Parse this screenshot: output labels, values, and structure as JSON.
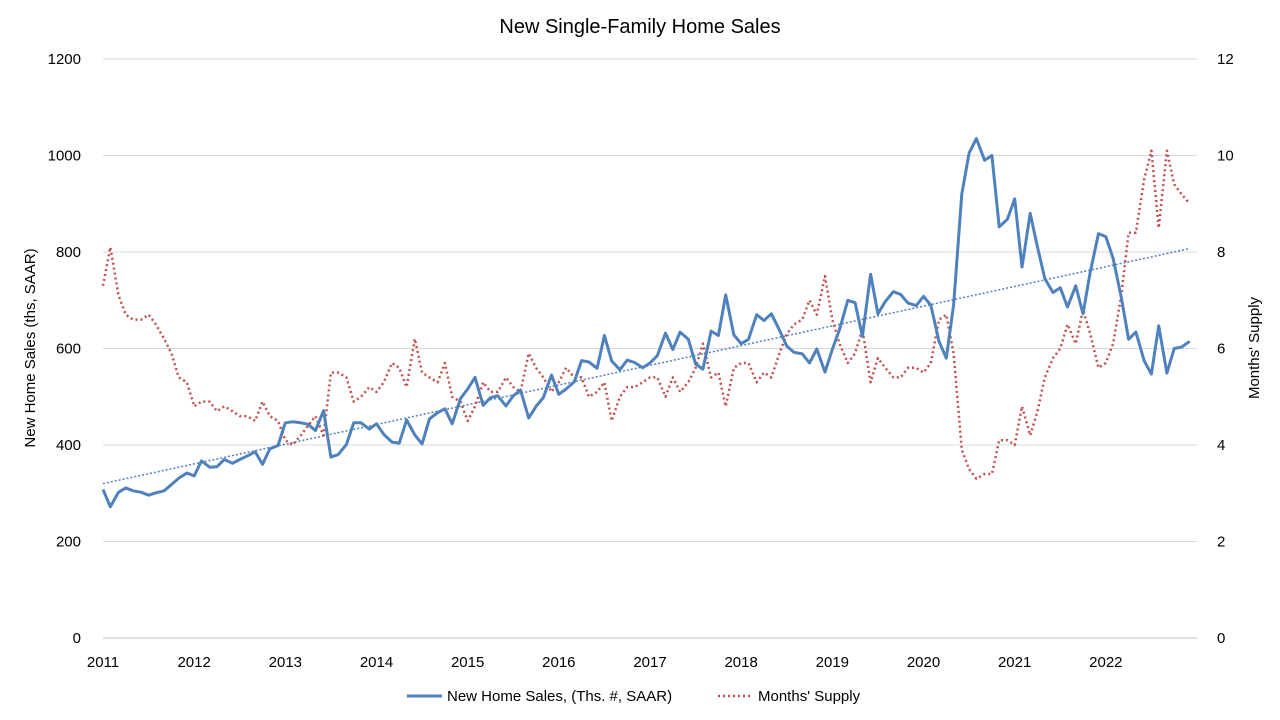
{
  "chart_data": {
    "type": "line",
    "title": "New Single-Family Home Sales",
    "ylabel": "New Home Sales (ths, SAAR)",
    "y2label": "Months' Supply",
    "ylim": [
      0,
      1200
    ],
    "y2lim": [
      0,
      12
    ],
    "yticks": [
      0,
      200,
      400,
      600,
      800,
      1000,
      1200
    ],
    "y2ticks": [
      0,
      2,
      4,
      6,
      8,
      10,
      12
    ],
    "xlim": [
      2011,
      2023
    ],
    "xticks": [
      "2011",
      "2012",
      "2013",
      "2014",
      "2015",
      "2016",
      "2017",
      "2018",
      "2019",
      "2020",
      "2021",
      "2022"
    ],
    "grid": true,
    "legend_position": "bottom",
    "series": [
      {
        "name": "New Home Sales, (Ths. #, SAAR)",
        "axis": "left",
        "color": "#4f81bd",
        "style": "solid",
        "x": [
          2011.0,
          2011.08,
          2011.17,
          2011.25,
          2011.33,
          2011.42,
          2011.5,
          2011.58,
          2011.67,
          2011.75,
          2011.83,
          2011.92,
          2012.0,
          2012.08,
          2012.17,
          2012.25,
          2012.33,
          2012.42,
          2012.5,
          2012.58,
          2012.67,
          2012.75,
          2012.83,
          2012.92,
          2013.0,
          2013.08,
          2013.17,
          2013.25,
          2013.33,
          2013.42,
          2013.5,
          2013.58,
          2013.67,
          2013.75,
          2013.83,
          2013.92,
          2014.0,
          2014.08,
          2014.17,
          2014.25,
          2014.33,
          2014.42,
          2014.5,
          2014.58,
          2014.67,
          2014.75,
          2014.83,
          2014.92,
          2015.0,
          2015.08,
          2015.17,
          2015.25,
          2015.33,
          2015.42,
          2015.5,
          2015.58,
          2015.67,
          2015.75,
          2015.83,
          2015.92,
          2016.0,
          2016.08,
          2016.17,
          2016.25,
          2016.33,
          2016.42,
          2016.5,
          2016.58,
          2016.67,
          2016.75,
          2016.83,
          2016.92,
          2017.0,
          2017.08,
          2017.17,
          2017.25,
          2017.33,
          2017.42,
          2017.5,
          2017.58,
          2017.67,
          2017.75,
          2017.83,
          2017.92,
          2018.0,
          2018.08,
          2018.17,
          2018.25,
          2018.33,
          2018.42,
          2018.5,
          2018.58,
          2018.67,
          2018.75,
          2018.83,
          2018.92,
          2019.0,
          2019.08,
          2019.17,
          2019.25,
          2019.33,
          2019.42,
          2019.5,
          2019.58,
          2019.67,
          2019.75,
          2019.83,
          2019.92,
          2020.0,
          2020.08,
          2020.17,
          2020.25,
          2020.33,
          2020.42,
          2020.5,
          2020.58,
          2020.67,
          2020.75,
          2020.83,
          2020.92,
          2021.0,
          2021.08,
          2021.17,
          2021.25,
          2021.33,
          2021.42,
          2021.5,
          2021.58,
          2021.67,
          2021.75,
          2021.83,
          2021.92,
          2022.0,
          2022.08,
          2022.17,
          2022.25,
          2022.33,
          2022.42,
          2022.5,
          2022.58,
          2022.67,
          2022.75,
          2022.83,
          2022.92
        ],
        "values": [
          308,
          272,
          302,
          311,
          305,
          302,
          296,
          301,
          305,
          318,
          331,
          342,
          336,
          367,
          354,
          355,
          370,
          362,
          370,
          377,
          386,
          360,
          392,
          399,
          446,
          448,
          446,
          443,
          430,
          471,
          375,
          380,
          401,
          446,
          446,
          433,
          444,
          422,
          406,
          404,
          452,
          421,
          402,
          454,
          467,
          475,
          444,
          496,
          516,
          540,
          482,
          498,
          502,
          481,
          502,
          514,
          456,
          480,
          498,
          545,
          505,
          516,
          531,
          575,
          572,
          559,
          627,
          574,
          556,
          576,
          571,
          560,
          570,
          585,
          632,
          598,
          634,
          619,
          568,
          557,
          636,
          627,
          711,
          628,
          610,
          619,
          670,
          658,
          672,
          638,
          605,
          592,
          589,
          570,
          599,
          551,
          598,
          640,
          700,
          695,
          625,
          754,
          672,
          697,
          718,
          712,
          694,
          689,
          708,
          690,
          615,
          580,
          690,
          920,
          1005,
          1035,
          990,
          1000,
          852,
          868,
          910,
          769,
          880,
          810,
          745,
          716,
          726,
          686,
          730,
          672,
          759,
          838,
          832,
          787,
          706,
          619,
          634,
          575,
          547,
          647,
          549,
          600,
          603,
          615
        ]
      },
      {
        "name": "Months' Supply",
        "axis": "right",
        "color": "#c0504d",
        "style": "dotted",
        "x": [
          2011.0,
          2011.08,
          2011.17,
          2011.25,
          2011.33,
          2011.42,
          2011.5,
          2011.58,
          2011.67,
          2011.75,
          2011.83,
          2011.92,
          2012.0,
          2012.08,
          2012.17,
          2012.25,
          2012.33,
          2012.42,
          2012.5,
          2012.58,
          2012.67,
          2012.75,
          2012.83,
          2012.92,
          2013.0,
          2013.08,
          2013.17,
          2013.25,
          2013.33,
          2013.42,
          2013.5,
          2013.58,
          2013.67,
          2013.75,
          2013.83,
          2013.92,
          2014.0,
          2014.08,
          2014.17,
          2014.25,
          2014.33,
          2014.42,
          2014.5,
          2014.58,
          2014.67,
          2014.75,
          2014.83,
          2014.92,
          2015.0,
          2015.08,
          2015.17,
          2015.25,
          2015.33,
          2015.42,
          2015.5,
          2015.58,
          2015.67,
          2015.75,
          2015.83,
          2015.92,
          2016.0,
          2016.08,
          2016.17,
          2016.25,
          2016.33,
          2016.42,
          2016.5,
          2016.58,
          2016.67,
          2016.75,
          2016.83,
          2016.92,
          2017.0,
          2017.08,
          2017.17,
          2017.25,
          2017.33,
          2017.42,
          2017.5,
          2017.58,
          2017.67,
          2017.75,
          2017.83,
          2017.92,
          2018.0,
          2018.08,
          2018.17,
          2018.25,
          2018.33,
          2018.42,
          2018.5,
          2018.58,
          2018.67,
          2018.75,
          2018.83,
          2018.92,
          2019.0,
          2019.08,
          2019.17,
          2019.25,
          2019.33,
          2019.42,
          2019.5,
          2019.58,
          2019.67,
          2019.75,
          2019.83,
          2019.92,
          2020.0,
          2020.08,
          2020.17,
          2020.25,
          2020.33,
          2020.42,
          2020.5,
          2020.58,
          2020.67,
          2020.75,
          2020.83,
          2020.92,
          2021.0,
          2021.08,
          2021.17,
          2021.25,
          2021.33,
          2021.42,
          2021.5,
          2021.58,
          2021.67,
          2021.75,
          2021.83,
          2021.92,
          2022.0,
          2022.08,
          2022.17,
          2022.25,
          2022.33,
          2022.42,
          2022.5,
          2022.58,
          2022.67,
          2022.75,
          2022.83,
          2022.92
        ],
        "values": [
          7.3,
          8.1,
          7.1,
          6.7,
          6.6,
          6.6,
          6.7,
          6.5,
          6.2,
          5.9,
          5.4,
          5.3,
          4.8,
          4.9,
          4.9,
          4.7,
          4.8,
          4.7,
          4.6,
          4.6,
          4.5,
          4.9,
          4.6,
          4.5,
          4.1,
          4.0,
          4.2,
          4.4,
          4.6,
          4.2,
          5.5,
          5.5,
          5.4,
          4.9,
          5.0,
          5.2,
          5.1,
          5.3,
          5.7,
          5.6,
          5.2,
          6.2,
          5.5,
          5.4,
          5.3,
          5.7,
          5.0,
          4.9,
          4.5,
          4.8,
          5.3,
          5.1,
          5.1,
          5.4,
          5.2,
          5.1,
          5.9,
          5.6,
          5.4,
          5.1,
          5.3,
          5.6,
          5.4,
          5.4,
          5.0,
          5.1,
          5.3,
          4.5,
          5.0,
          5.2,
          5.2,
          5.3,
          5.4,
          5.4,
          5.0,
          5.4,
          5.1,
          5.3,
          5.6,
          6.1,
          5.4,
          5.5,
          4.8,
          5.6,
          5.7,
          5.7,
          5.3,
          5.5,
          5.4,
          5.9,
          6.3,
          6.5,
          6.6,
          7.0,
          6.7,
          7.5,
          6.6,
          6.1,
          5.7,
          5.9,
          6.4,
          5.3,
          5.8,
          5.6,
          5.4,
          5.4,
          5.6,
          5.6,
          5.5,
          5.7,
          6.6,
          6.7,
          5.9,
          3.9,
          3.5,
          3.3,
          3.4,
          3.4,
          4.1,
          4.1,
          4.0,
          4.8,
          4.2,
          4.7,
          5.4,
          5.8,
          6.0,
          6.5,
          6.1,
          6.8,
          6.3,
          5.6,
          5.7,
          6.1,
          7.1,
          8.4,
          8.4,
          9.5,
          10.1,
          8.5,
          10.1,
          9.4,
          9.2,
          9.0
        ]
      },
      {
        "name": "",
        "axis": "left",
        "color": "#4f81bd",
        "style": "dotted-thin",
        "kind": "trendline",
        "x": [
          2011.0,
          2022.92
        ],
        "values": [
          320,
          807
        ]
      }
    ]
  }
}
